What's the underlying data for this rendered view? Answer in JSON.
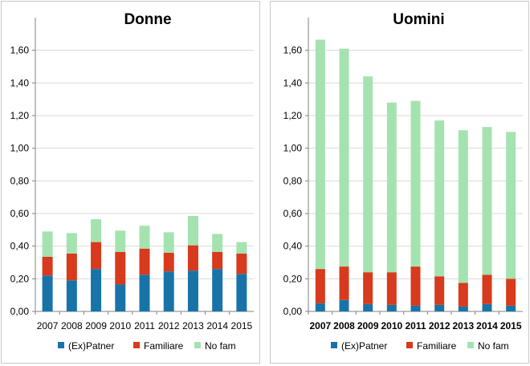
{
  "colors": {
    "ex_partner": "#1874a8",
    "familiare": "#d73a1c",
    "no_fam": "#a4e3b0",
    "grid": "#d9d9d9",
    "axis": "#808080"
  },
  "chart_data": [
    {
      "type": "bar",
      "stacked": true,
      "title": "Donne",
      "categories": [
        "2007",
        "2008",
        "2009",
        "2010",
        "2011",
        "2012",
        "2013",
        "2014",
        "2015"
      ],
      "ylim": [
        0,
        1.8
      ],
      "yticks": [
        0,
        0.2,
        0.4,
        0.6,
        0.8,
        1.0,
        1.2,
        1.4,
        1.6
      ],
      "ytick_labels": [
        "0,00",
        "0,20",
        "0,40",
        "0,60",
        "0,80",
        "1,00",
        "1,20",
        "1,40",
        "1,60"
      ],
      "grid": true,
      "legend_position": "bottom",
      "series": [
        {
          "name": "(Ex)Patner",
          "color_key": "ex_partner",
          "values": [
            0.22,
            0.19,
            0.26,
            0.165,
            0.225,
            0.245,
            0.25,
            0.26,
            0.23
          ]
        },
        {
          "name": "Familiare",
          "color_key": "familiare",
          "values": [
            0.115,
            0.165,
            0.165,
            0.2,
            0.16,
            0.115,
            0.155,
            0.105,
            0.125
          ]
        },
        {
          "name": "No fam",
          "color_key": "no_fam",
          "values": [
            0.155,
            0.125,
            0.14,
            0.13,
            0.14,
            0.125,
            0.18,
            0.11,
            0.07
          ]
        }
      ]
    },
    {
      "type": "bar",
      "stacked": true,
      "title": "Uomini",
      "categories": [
        "2007",
        "2008",
        "2009",
        "2010",
        "2011",
        "2012",
        "2013",
        "2014",
        "2015"
      ],
      "ylim": [
        0,
        1.8
      ],
      "yticks": [
        0,
        0.2,
        0.4,
        0.6,
        0.8,
        1.0,
        1.2,
        1.4,
        1.6
      ],
      "ytick_labels": [
        "0,00",
        "0,20",
        "0,40",
        "0,60",
        "0,80",
        "1,00",
        "1,20",
        "1,40",
        "1,60"
      ],
      "grid": true,
      "legend_position": "bottom",
      "series": [
        {
          "name": "(Ex)Patner",
          "color_key": "ex_partner",
          "values": [
            0.05,
            0.07,
            0.045,
            0.04,
            0.035,
            0.04,
            0.03,
            0.045,
            0.035
          ]
        },
        {
          "name": "Familiare",
          "color_key": "familiare",
          "values": [
            0.21,
            0.205,
            0.195,
            0.2,
            0.24,
            0.175,
            0.145,
            0.18,
            0.165
          ]
        },
        {
          "name": "No fam",
          "color_key": "no_fam",
          "values": [
            1.405,
            1.335,
            1.2,
            1.04,
            1.015,
            0.955,
            0.935,
            0.905,
            0.9
          ]
        }
      ]
    }
  ]
}
